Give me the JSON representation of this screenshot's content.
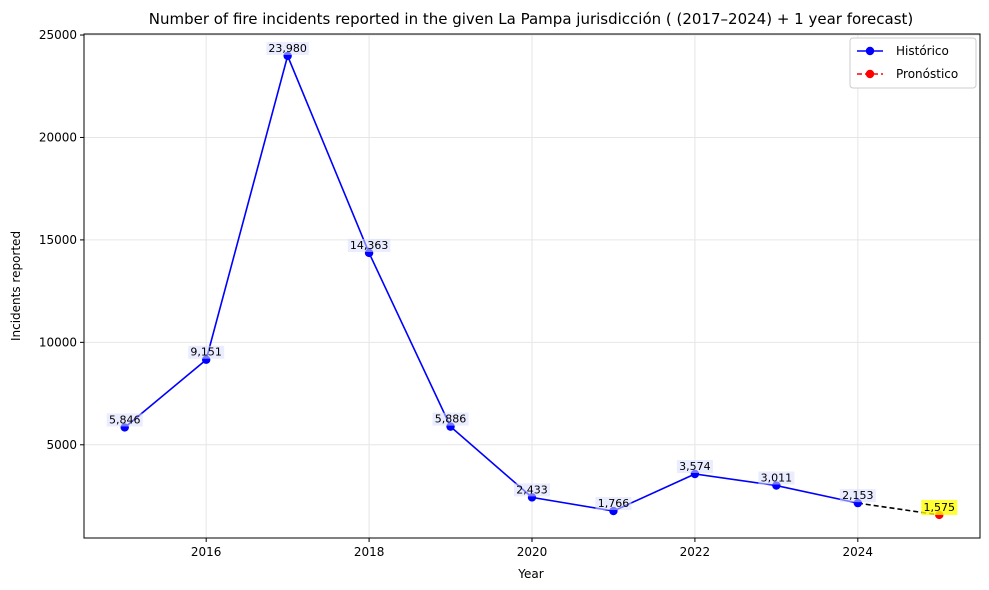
{
  "chart_data": {
    "type": "line",
    "title": "Number of fire incidents reported in the given La Pampa jurisdicción  ( (2017–2024)  + 1 year forecast)",
    "xlabel": "Year",
    "ylabel": "Incidents reported",
    "xlim": [
      2014.5,
      2025.5
    ],
    "ylim": [
      450,
      25050
    ],
    "xticks": [
      2016,
      2018,
      2020,
      2022,
      2024
    ],
    "yticks": [
      5000,
      10000,
      15000,
      20000,
      25000
    ],
    "grid": true,
    "legend_position": "top-right",
    "series": [
      {
        "name": "Histórico",
        "color": "#0000ff",
        "style": "solid",
        "x": [
          2015,
          2016,
          2017,
          2018,
          2019,
          2020,
          2021,
          2022,
          2023,
          2024
        ],
        "y": [
          5846,
          9151,
          23980,
          14363,
          5886,
          2433,
          1766,
          3574,
          3011,
          2153
        ],
        "labels": [
          "5,846",
          "9,151",
          "23,980",
          "14,363",
          "5,886",
          "2,433",
          "1,766",
          "3,574",
          "3,011",
          "2,153"
        ]
      },
      {
        "name": "Pronóstico",
        "color": "#ff0000",
        "style": "dashed",
        "x": [
          2025
        ],
        "y": [
          1575
        ],
        "labels": [
          "1,575"
        ]
      }
    ],
    "connector": {
      "from": [
        2024,
        2153
      ],
      "to": [
        2025,
        1575
      ],
      "color": "#000000",
      "style": "dashed"
    },
    "highlight_color": "#ffff00"
  }
}
